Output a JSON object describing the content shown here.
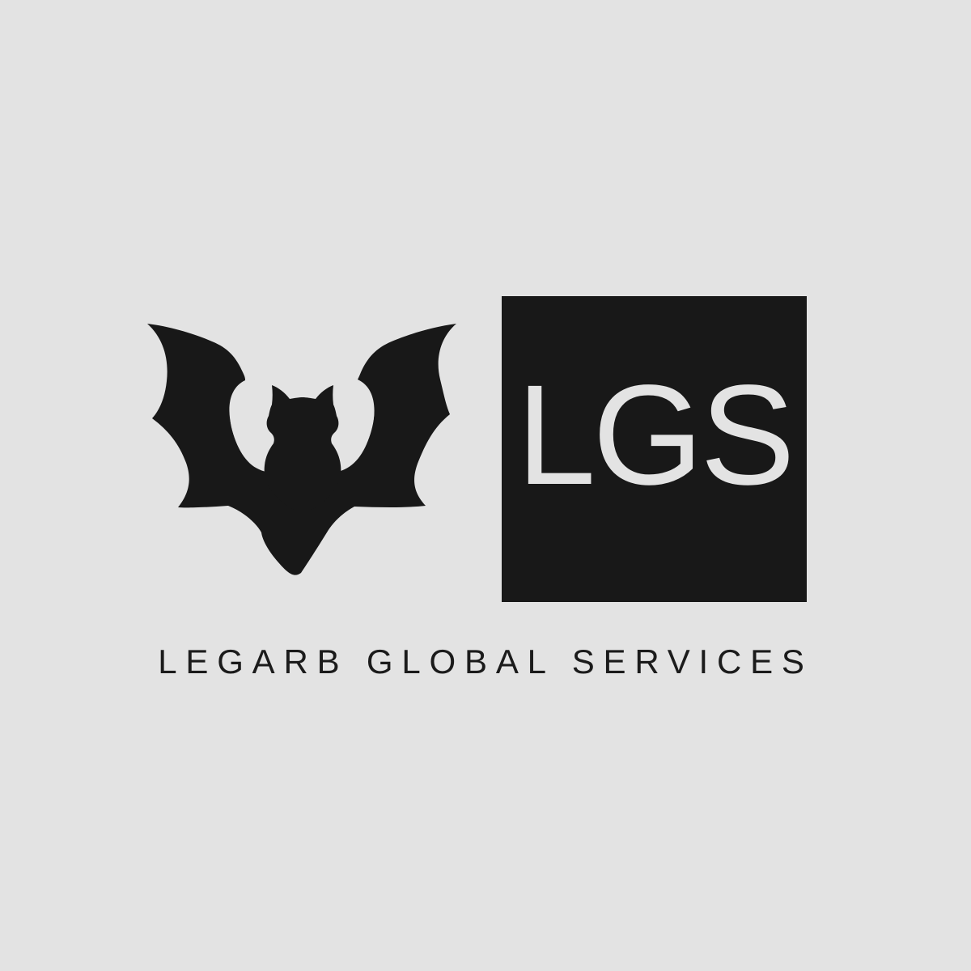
{
  "logo": {
    "monogram": "LGS",
    "company_name": "LEGARB GLOBAL SERVICES",
    "icon": "bat-icon"
  },
  "colors": {
    "background": "#e3e3e3",
    "mark": "#181818",
    "monogram_text": "#e3e3e3",
    "company_text": "#1b1b1b"
  }
}
